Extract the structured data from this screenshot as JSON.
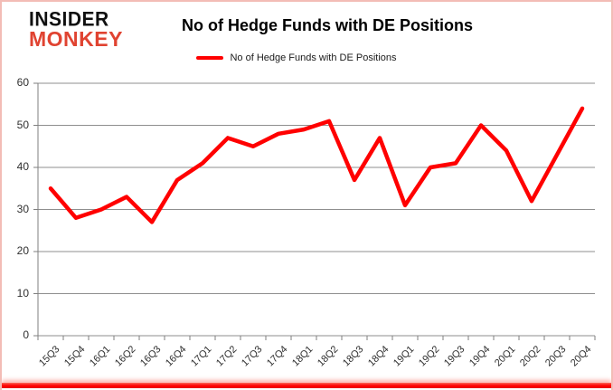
{
  "logo": {
    "line1": "INSIDER",
    "line2": "MONKEY"
  },
  "header": {
    "title": "No of Hedge Funds with DE Positions"
  },
  "legend": {
    "label": "No of Hedge Funds with DE Positions"
  },
  "chart_data": {
    "type": "line",
    "title": "No of Hedge Funds with DE Positions",
    "categories": [
      "15Q3",
      "15Q4",
      "16Q1",
      "16Q2",
      "16Q3",
      "16Q4",
      "17Q1",
      "17Q2",
      "17Q3",
      "17Q4",
      "18Q1",
      "18Q2",
      "18Q3",
      "18Q4",
      "19Q1",
      "19Q2",
      "19Q3",
      "19Q4",
      "20Q1",
      "20Q2",
      "20Q3",
      "20Q4"
    ],
    "series": [
      {
        "name": "No of Hedge Funds with DE Positions",
        "color": "#ff0000",
        "values": [
          35,
          28,
          30,
          33,
          27,
          37,
          41,
          47,
          45,
          48,
          49,
          51,
          37,
          47,
          31,
          40,
          41,
          50,
          44,
          32,
          43,
          54
        ]
      }
    ],
    "xlabel": "",
    "ylabel": "",
    "ylim": [
      0,
      60
    ],
    "y_ticks": [
      0,
      10,
      20,
      30,
      40,
      50,
      60
    ],
    "grid": true,
    "legend_position": "top"
  },
  "colors": {
    "line_red": "#ff0000",
    "logo_red": "#e04331",
    "grid_gray": "#8f8f8f",
    "axis_gray": "#7f7f7f",
    "border_pink": "#f3bcb6",
    "bottom_bar_red": "#fe0000"
  }
}
